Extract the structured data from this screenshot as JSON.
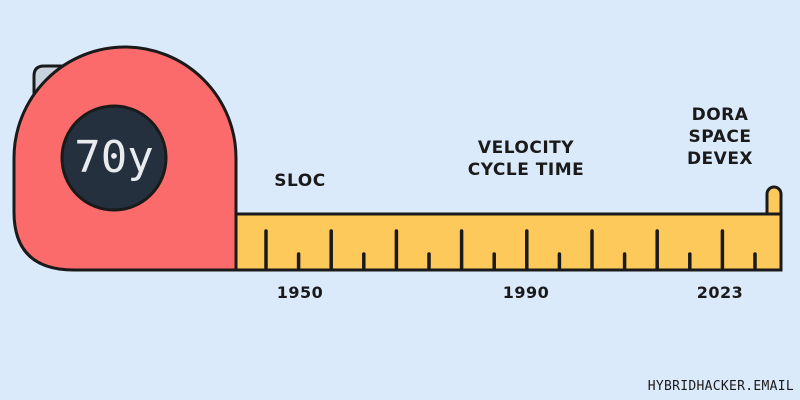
{
  "tape": {
    "counter": "70y",
    "colors": {
      "case": "#fb6b6b",
      "tape": "#fcc95a",
      "dial": "#25303f",
      "clip": "#c9d3de",
      "outline": "#1a1a1a",
      "background": "#dbeafb"
    }
  },
  "eras": [
    {
      "year": "1950",
      "metrics": [
        "SLOC"
      ]
    },
    {
      "year": "1990",
      "metrics": [
        "VELOCITY",
        "CYCLE TIME"
      ]
    },
    {
      "year": "2023",
      "metrics": [
        "DORA",
        "SPACE",
        "DEVEX"
      ]
    }
  ],
  "credit": "HYBRIDHACKER.EMAIL"
}
